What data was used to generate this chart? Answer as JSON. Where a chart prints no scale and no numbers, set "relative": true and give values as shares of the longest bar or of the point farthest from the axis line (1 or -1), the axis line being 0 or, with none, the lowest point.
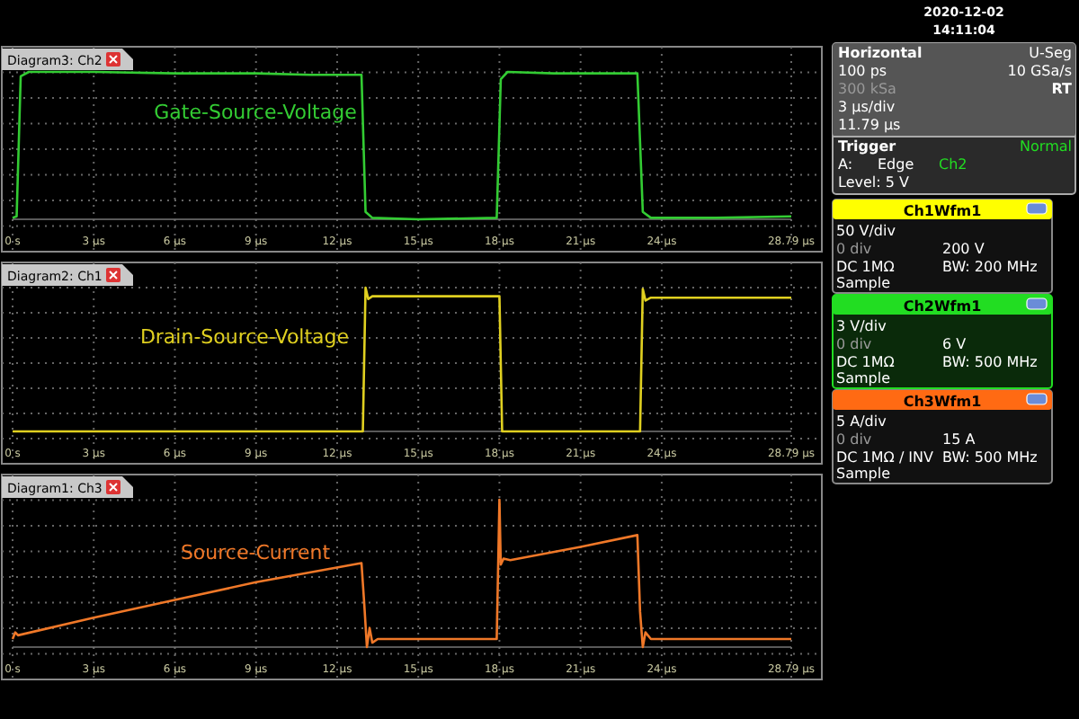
{
  "chart_data": [
    {
      "type": "line",
      "title": "Diagram3: Ch2",
      "relative": true,
      "grid": true,
      "xlim": [
        0,
        28.79
      ],
      "xticks": [
        {
          "value": 0,
          "label": "0 s"
        },
        {
          "value": 3,
          "label": "3 µs"
        },
        {
          "value": 6,
          "label": "6 µs"
        },
        {
          "value": 9,
          "label": "9 µs"
        },
        {
          "value": 12,
          "label": "12 µs"
        },
        {
          "value": 15,
          "label": "15 µs"
        },
        {
          "value": 18,
          "label": "18 µs"
        },
        {
          "value": 21,
          "label": "21 µs"
        },
        {
          "value": 24,
          "label": "24 µs"
        },
        {
          "value": 28.79,
          "label": "28.79 µs"
        }
      ],
      "series": [
        {
          "name": "Gate-Source-Voltage",
          "color": "#33cc33",
          "x": [
            0,
            0.15,
            0.3,
            0.6,
            3,
            6,
            9,
            11,
            12.9,
            13.05,
            13.3,
            15,
            17.9,
            18.05,
            18.3,
            20,
            23.1,
            23.3,
            23.6,
            26,
            28.79
          ],
          "values": [
            0.01,
            0.02,
            0.97,
            1,
            1,
            0.99,
            0.99,
            0.98,
            0.98,
            0.05,
            0.01,
            0,
            0.01,
            0.95,
            1,
            0.99,
            0.99,
            0.05,
            0.01,
            0.01,
            0.02
          ]
        }
      ]
    },
    {
      "type": "line",
      "title": "Diagram2: Ch1",
      "relative": true,
      "grid": true,
      "xlim": [
        0,
        28.79
      ],
      "xticks": [
        {
          "value": 0,
          "label": "0 s"
        },
        {
          "value": 3,
          "label": "3 µs"
        },
        {
          "value": 6,
          "label": "6 µs"
        },
        {
          "value": 9,
          "label": "9 µs"
        },
        {
          "value": 12,
          "label": "12 µs"
        },
        {
          "value": 15,
          "label": "15 µs"
        },
        {
          "value": 18,
          "label": "18 µs"
        },
        {
          "value": 21,
          "label": "21 µs"
        },
        {
          "value": 24,
          "label": "24 µs"
        },
        {
          "value": 28.79,
          "label": "28.79 µs"
        }
      ],
      "series": [
        {
          "name": "Drain-Source-Voltage",
          "color": "#e0d020",
          "x": [
            0,
            6,
            12.95,
            13.05,
            13.15,
            13.3,
            15,
            18,
            18.1,
            21,
            23.2,
            23.3,
            23.4,
            23.6,
            28.79
          ],
          "values": [
            0,
            0,
            0,
            1,
            0.92,
            0.94,
            0.94,
            0.94,
            0,
            0,
            0,
            0.99,
            0.91,
            0.93,
            0.93
          ]
        }
      ]
    },
    {
      "type": "line",
      "title": "Diagram1: Ch3",
      "relative": true,
      "grid": true,
      "xlim": [
        0,
        28.79
      ],
      "xticks": [
        {
          "value": 0,
          "label": "0 s"
        },
        {
          "value": 3,
          "label": "3 µs"
        },
        {
          "value": 6,
          "label": "6 µs"
        },
        {
          "value": 9,
          "label": "9 µs"
        },
        {
          "value": 12,
          "label": "12 µs"
        },
        {
          "value": 15,
          "label": "15 µs"
        },
        {
          "value": 18,
          "label": "18 µs"
        },
        {
          "value": 21,
          "label": "21 µs"
        },
        {
          "value": 24,
          "label": "24 µs"
        },
        {
          "value": 28.79,
          "label": "28.79 µs"
        }
      ],
      "series": [
        {
          "name": "Source-Current",
          "color": "#f07828",
          "x": [
            0,
            0.1,
            0.2,
            3,
            6,
            9,
            12.9,
            13,
            13.1,
            13.2,
            13.3,
            13.5,
            15,
            17.9,
            18,
            18.05,
            18.15,
            18.4,
            21,
            23.1,
            23.2,
            23.3,
            23.4,
            23.6,
            26,
            28.79
          ],
          "values": [
            0.055,
            0.1,
            0.08,
            0.2,
            0.32,
            0.44,
            0.57,
            0.3,
            0,
            0.13,
            0.03,
            0.055,
            0.055,
            0.055,
            1,
            0.56,
            0.6,
            0.59,
            0.68,
            0.76,
            0.24,
            0,
            0.1,
            0.055,
            0.055,
            0.055
          ]
        }
      ]
    },
    {
      "type": "other",
      "colors": [
        "#ffff00",
        "#22dd22",
        "#ff6a13"
      ],
      "annotations": [
        "2020-12-02",
        "14:11:04",
        "Horizontal",
        "U-Seg",
        "100 ps",
        "10 GSa/s",
        "300 kSa",
        "RT",
        "3 µs/div",
        "11.79 µs",
        "Trigger",
        "Normal",
        "A:",
        "Edge",
        "Ch2",
        "Level: 5 V",
        "Ch1Wfm1",
        "50 V/div",
        "0 div",
        "200 V",
        "DC 1MΩ",
        "BW: 200 MHz",
        "Sample",
        "Ch2Wfm1",
        "3 V/div",
        "0 div",
        "6 V",
        "DC 1MΩ",
        "BW: 500 MHz",
        "Sample",
        "Ch3Wfm1",
        "5 A/div",
        "0 div",
        "15 A",
        "DC 1MΩ / INV",
        "BW: 500 MHz",
        "Sample"
      ]
    }
  ]
}
